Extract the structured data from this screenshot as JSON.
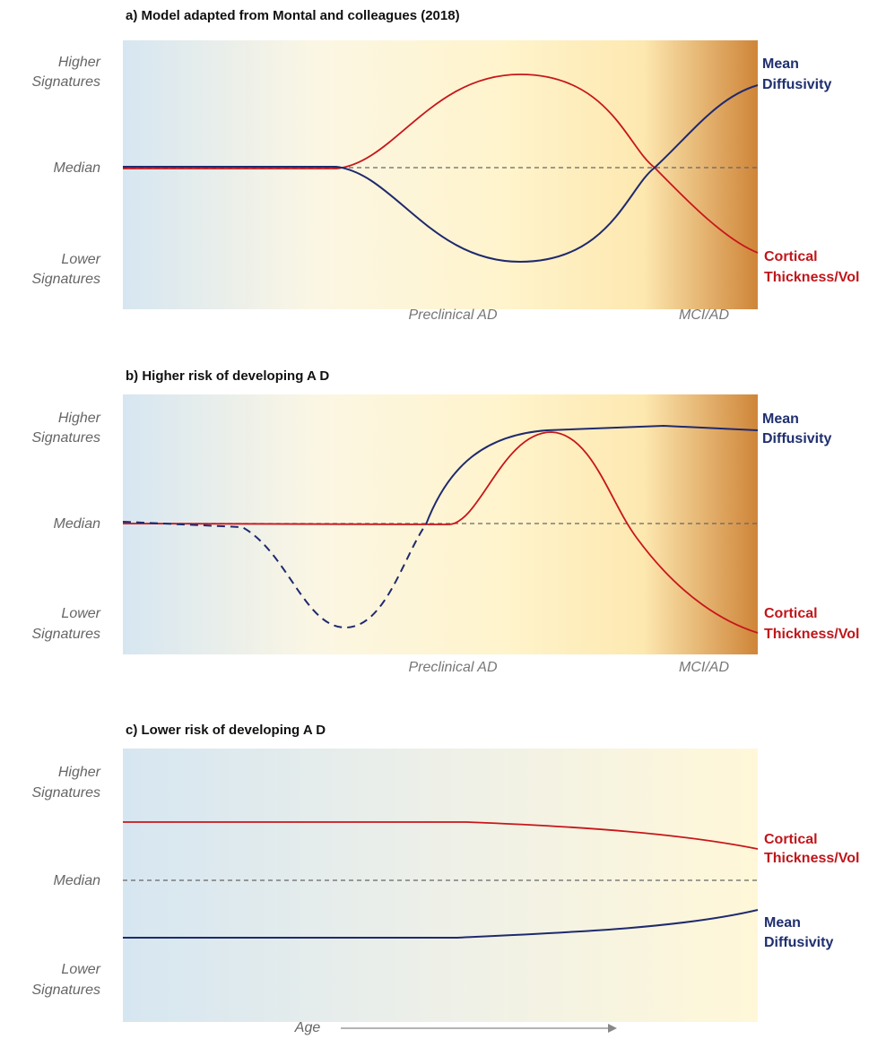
{
  "panels": [
    {
      "title": "a) Model adapted from Montal and colleagues (2018)",
      "higher": [
        "Higher",
        "Signatures"
      ],
      "median": "Median",
      "lower": [
        "Lower",
        "Signatures"
      ],
      "phases": [
        "Preclinical AD",
        "MCI/AD"
      ],
      "mean_diffusivity": [
        "Mean",
        "Diffusivity"
      ],
      "cortical_thickness": [
        "Cortical",
        "Thickness/Vol"
      ]
    },
    {
      "title": "b) Higher risk of developing A D",
      "higher": [
        "Higher",
        "Signatures"
      ],
      "median": "Median",
      "lower": [
        "Lower",
        "Signatures"
      ],
      "phases": [
        "Preclinical AD",
        "MCI/AD"
      ],
      "mean_diffusivity": [
        "Mean",
        "Diffusivity"
      ],
      "cortical_thickness": [
        "Cortical",
        "Thickness/Vol"
      ]
    },
    {
      "title": "c) Lower risk of developing A D",
      "higher": [
        "Higher",
        "Signatures"
      ],
      "median": "Median",
      "lower": [
        "Lower",
        "Signatures"
      ],
      "cortical_thickness": [
        "Cortical",
        "Thickness/Vol"
      ],
      "mean_diffusivity": [
        "Mean",
        "Diffusivity"
      ]
    }
  ],
  "x_axis_label": "Age"
}
